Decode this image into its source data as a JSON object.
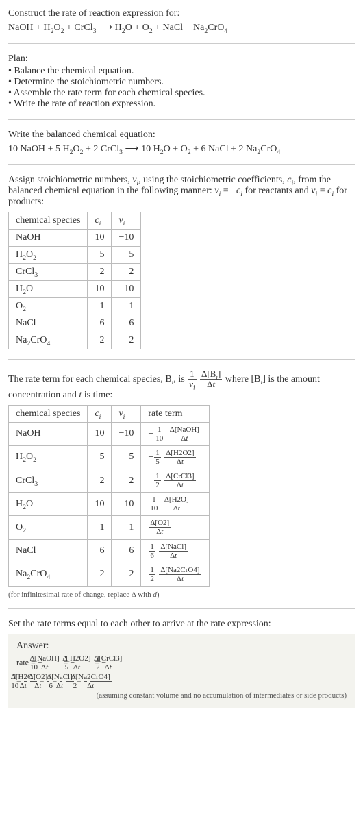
{
  "intro": {
    "title": "Construct the rate of reaction expression for:",
    "eq": "NaOH + H<sub>2</sub>O<sub>2</sub> + CrCl<sub>3</sub>  ⟶  H<sub>2</sub>O + O<sub>2</sub> + NaCl + Na<sub>2</sub>CrO<sub>4</sub>"
  },
  "plan": {
    "label": "Plan:",
    "items": [
      "Balance the chemical equation.",
      "Determine the stoichiometric numbers.",
      "Assemble the rate term for each chemical species.",
      "Write the rate of reaction expression."
    ]
  },
  "balanced": {
    "label": "Write the balanced chemical equation:",
    "eq": "10 NaOH + 5 H<sub>2</sub>O<sub>2</sub> + 2 CrCl<sub>3</sub>  ⟶  10 H<sub>2</sub>O + O<sub>2</sub> + 6 NaCl + 2 Na<sub>2</sub>CrO<sub>4</sub>"
  },
  "assign": {
    "text": "Assign stoichiometric numbers, <i>ν<sub>i</sub></i>, using the stoichiometric coefficients, <i>c<sub>i</sub></i>, from the balanced chemical equation in the following manner: <i>ν<sub>i</sub></i> = −<i>c<sub>i</sub></i> for reactants and <i>ν<sub>i</sub></i> = <i>c<sub>i</sub></i> for products:"
  },
  "table1": {
    "headers": [
      "chemical species",
      "<i>c<sub>i</sub></i>",
      "<i>ν<sub>i</sub></i>"
    ],
    "rows": [
      [
        "NaOH",
        "10",
        "−10"
      ],
      [
        "H<sub>2</sub>O<sub>2</sub>",
        "5",
        "−5"
      ],
      [
        "CrCl<sub>3</sub>",
        "2",
        "−2"
      ],
      [
        "H<sub>2</sub>O",
        "10",
        "10"
      ],
      [
        "O<sub>2</sub>",
        "1",
        "1"
      ],
      [
        "NaCl",
        "6",
        "6"
      ],
      [
        "Na<sub>2</sub>CrO<sub>4</sub>",
        "2",
        "2"
      ]
    ]
  },
  "rateterm_intro": {
    "pre": "The rate term for each chemical species, B<sub><i>i</i></sub>, is ",
    "frac1_num": "1",
    "frac1_den": "<i>ν<sub>i</sub></i>",
    "frac2_num": "Δ[B<sub><i>i</i></sub>]",
    "frac2_den": "Δ<i>t</i>",
    "post": " where [B<sub><i>i</i></sub>] is the amount concentration and <i>t</i> is time:"
  },
  "table2": {
    "headers": [
      "chemical species",
      "<i>c<sub>i</sub></i>",
      "<i>ν<sub>i</sub></i>",
      "rate term"
    ],
    "rows": [
      {
        "sp": "NaOH",
        "c": "10",
        "v": "−10",
        "neg": "−",
        "n1": "1",
        "d1": "10",
        "n2": "Δ[NaOH]",
        "d2": "Δ<i>t</i>"
      },
      {
        "sp": "H<sub>2</sub>O<sub>2</sub>",
        "c": "5",
        "v": "−5",
        "neg": "−",
        "n1": "1",
        "d1": "5",
        "n2": "Δ[H2O2]",
        "d2": "Δ<i>t</i>"
      },
      {
        "sp": "CrCl<sub>3</sub>",
        "c": "2",
        "v": "−2",
        "neg": "−",
        "n1": "1",
        "d1": "2",
        "n2": "Δ[CrCl3]",
        "d2": "Δ<i>t</i>"
      },
      {
        "sp": "H<sub>2</sub>O",
        "c": "10",
        "v": "10",
        "neg": "",
        "n1": "1",
        "d1": "10",
        "n2": "Δ[H2O]",
        "d2": "Δ<i>t</i>"
      },
      {
        "sp": "O<sub>2</sub>",
        "c": "1",
        "v": "1",
        "neg": "",
        "n1": "",
        "d1": "",
        "n2": "Δ[O2]",
        "d2": "Δ<i>t</i>"
      },
      {
        "sp": "NaCl",
        "c": "6",
        "v": "6",
        "neg": "",
        "n1": "1",
        "d1": "6",
        "n2": "Δ[NaCl]",
        "d2": "Δ<i>t</i>"
      },
      {
        "sp": "Na<sub>2</sub>CrO<sub>4</sub>",
        "c": "2",
        "v": "2",
        "neg": "",
        "n1": "1",
        "d1": "2",
        "n2": "Δ[Na2CrO4]",
        "d2": "Δ<i>t</i>"
      }
    ]
  },
  "note_inf": "(for infinitesimal rate of change, replace Δ with <i>d</i>)",
  "set_equal": "Set the rate terms equal to each other to arrive at the rate expression:",
  "answer": {
    "label": "Answer:",
    "line1_pre": "rate = ",
    "terms1": [
      {
        "neg": "−",
        "n1": "1",
        "d1": "10",
        "n2": "Δ[NaOH]",
        "d2": "Δ<i>t</i>"
      },
      {
        "neg": "−",
        "n1": "1",
        "d1": "5",
        "n2": "Δ[H2O2]",
        "d2": "Δ<i>t</i>"
      },
      {
        "neg": "−",
        "n1": "1",
        "d1": "2",
        "n2": "Δ[CrCl3]",
        "d2": "Δ<i>t</i>"
      }
    ],
    "line2_pre": "= ",
    "terms2": [
      {
        "neg": "",
        "n1": "1",
        "d1": "10",
        "n2": "Δ[H2O]",
        "d2": "Δ<i>t</i>"
      },
      {
        "neg": "",
        "n1": "",
        "d1": "",
        "n2": "Δ[O2]",
        "d2": "Δ<i>t</i>"
      },
      {
        "neg": "",
        "n1": "1",
        "d1": "6",
        "n2": "Δ[NaCl]",
        "d2": "Δ<i>t</i>"
      },
      {
        "neg": "",
        "n1": "1",
        "d1": "2",
        "n2": "Δ[Na2CrO4]",
        "d2": "Δ<i>t</i>"
      }
    ],
    "note": "(assuming constant volume and no accumulation of intermediates or side products)"
  }
}
